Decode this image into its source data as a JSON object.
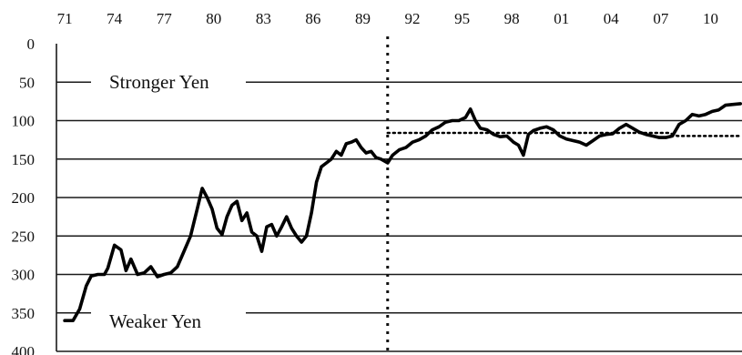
{
  "chart_data": {
    "type": "line",
    "x_axis": {
      "position": "top",
      "tick_labels": [
        "71",
        "74",
        "77",
        "80",
        "83",
        "86",
        "89",
        "92",
        "95",
        "98",
        "01",
        "04",
        "07",
        "10"
      ],
      "tick_years": [
        1971,
        1974,
        1977,
        1980,
        1983,
        1986,
        1989,
        1992,
        1995,
        1998,
        2001,
        2004,
        2007,
        2010
      ],
      "xlim": [
        1970.5,
        2011.9
      ]
    },
    "y_axis": {
      "inverted": true,
      "tick_labels": [
        "0",
        "50",
        "100",
        "150",
        "200",
        "250",
        "300",
        "350",
        "400"
      ],
      "ticks": [
        0,
        50,
        100,
        150,
        200,
        250,
        300,
        350,
        400
      ],
      "ylim": [
        0,
        400
      ]
    },
    "grid": "horizontal",
    "annotations": {
      "stronger": "Stronger Yen",
      "weaker": "Weaker Yen"
    },
    "vertical_marker_year": 1990.5,
    "series": [
      {
        "style": "solid",
        "x": [
          1971.0,
          1971.5,
          1971.9,
          1972.3,
          1972.6,
          1973.0,
          1973.4,
          1973.6,
          1974.0,
          1974.4,
          1974.7,
          1975.0,
          1975.4,
          1975.8,
          1976.2,
          1976.6,
          1977.0,
          1977.4,
          1977.8,
          1978.2,
          1978.6,
          1979.0,
          1979.3,
          1979.6,
          1979.9,
          1980.2,
          1980.5,
          1980.8,
          1981.1,
          1981.4,
          1981.7,
          1982.0,
          1982.3,
          1982.6,
          1982.9,
          1983.2,
          1983.5,
          1983.8,
          1984.1,
          1984.4,
          1984.7,
          1985.0,
          1985.3,
          1985.6,
          1985.9,
          1986.2,
          1986.5,
          1986.8,
          1987.1,
          1987.4,
          1987.7,
          1988.0,
          1988.3,
          1988.6,
          1988.9,
          1989.2,
          1989.5,
          1989.8,
          1990.1,
          1990.5,
          1990.8,
          1991.2,
          1991.6,
          1992.0,
          1992.4,
          1992.8,
          1993.2,
          1993.6,
          1994.0,
          1994.4,
          1994.8,
          1995.2,
          1995.5,
          1995.8,
          1996.1,
          1996.5,
          1996.9,
          1997.3,
          1997.7,
          1998.1,
          1998.4,
          1998.7,
          1999.0,
          1999.3,
          1999.7,
          2000.1,
          2000.5,
          2000.9,
          2001.3,
          2001.7,
          2002.1,
          2002.5,
          2002.9,
          2003.3,
          2003.7,
          2004.1,
          2004.5,
          2004.9,
          2005.3,
          2005.7,
          2006.1,
          2006.5,
          2006.9,
          2007.3,
          2007.7,
          2008.1,
          2008.5,
          2008.9,
          2009.3,
          2009.7,
          2010.1,
          2010.5,
          2010.9,
          2011.3,
          2011.8
        ],
        "y": [
          360,
          360,
          345,
          315,
          302,
          300,
          300,
          292,
          262,
          268,
          295,
          280,
          300,
          298,
          290,
          303,
          300,
          298,
          290,
          270,
          250,
          215,
          188,
          200,
          215,
          240,
          248,
          225,
          210,
          205,
          230,
          220,
          245,
          250,
          270,
          238,
          235,
          250,
          238,
          225,
          240,
          250,
          258,
          250,
          220,
          180,
          160,
          155,
          150,
          140,
          145,
          130,
          128,
          125,
          135,
          142,
          140,
          148,
          150,
          155,
          145,
          138,
          135,
          128,
          125,
          120,
          112,
          108,
          102,
          100,
          100,
          96,
          85,
          100,
          110,
          112,
          118,
          121,
          120,
          128,
          132,
          145,
          118,
          113,
          110,
          108,
          112,
          120,
          124,
          126,
          128,
          132,
          126,
          120,
          118,
          117,
          110,
          105,
          110,
          115,
          118,
          120,
          122,
          122,
          120,
          105,
          100,
          92,
          94,
          92,
          88,
          86,
          80,
          79,
          78
        ]
      },
      {
        "style": "dotted",
        "x": [
          1990.5,
          2001.0,
          2007.5,
          2008.0,
          2011.8
        ],
        "y": [
          116,
          116,
          116,
          120,
          120
        ]
      }
    ]
  }
}
